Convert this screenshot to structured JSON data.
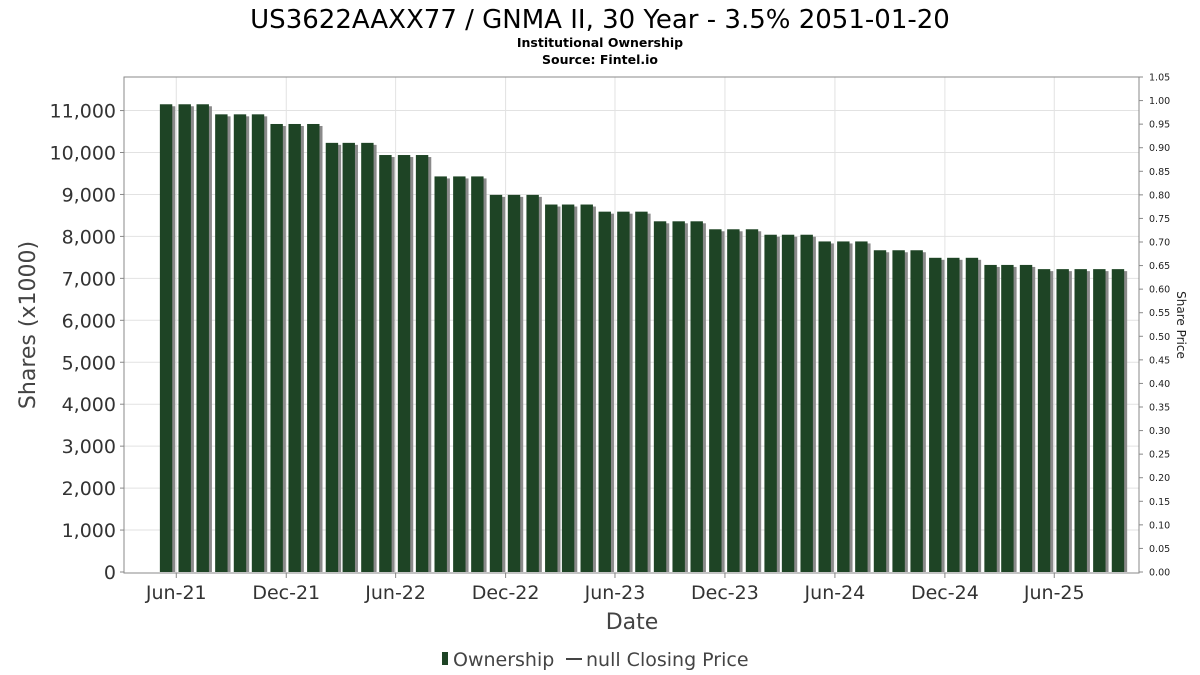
{
  "colors": {
    "bar": "#1e4425",
    "bar_shadow": "#8a8a8a",
    "grid": "#e2e2e2",
    "plot_border": "#888888"
  },
  "chart_data": {
    "type": "bar",
    "title": "US3622AAXX77 / GNMA II, 30 Year - 3.5% 2051-01-20",
    "subtitle_lines": [
      "Institutional Ownership",
      "Source: Fintel.io"
    ],
    "xlabel": "Date",
    "ylabel": "Shares (x1000)",
    "y2label": "Share Price",
    "ylim": [
      0,
      11800
    ],
    "y2lim": [
      0.0,
      1.05
    ],
    "yticks": [
      {
        "value": 0,
        "label": "0"
      },
      {
        "value": 1000,
        "label": "1,000"
      },
      {
        "value": 2000,
        "label": "2,000"
      },
      {
        "value": 3000,
        "label": "3,000"
      },
      {
        "value": 4000,
        "label": "4,000"
      },
      {
        "value": 5000,
        "label": "5,000"
      },
      {
        "value": 6000,
        "label": "6,000"
      },
      {
        "value": 7000,
        "label": "7,000"
      },
      {
        "value": 8000,
        "label": "8,000"
      },
      {
        "value": 9000,
        "label": "9,000"
      },
      {
        "value": 10000,
        "label": "10,000"
      },
      {
        "value": 11000,
        "label": "11,000"
      }
    ],
    "y2ticks": [
      "0.00",
      "0.05",
      "0.10",
      "0.15",
      "0.20",
      "0.25",
      "0.30",
      "0.35",
      "0.40",
      "0.45",
      "0.50",
      "0.55",
      "0.60",
      "0.65",
      "0.70",
      "0.75",
      "0.80",
      "0.85",
      "0.90",
      "0.95",
      "1.00",
      "1.05"
    ],
    "xlim": [
      "2021-03-06",
      "2025-10-20"
    ],
    "xticks": [
      {
        "date": "2021-06-01",
        "label": "Jun-21"
      },
      {
        "date": "2021-12-01",
        "label": "Dec-21"
      },
      {
        "date": "2022-06-01",
        "label": "Jun-22"
      },
      {
        "date": "2022-12-01",
        "label": "Dec-22"
      },
      {
        "date": "2023-06-01",
        "label": "Jun-23"
      },
      {
        "date": "2023-12-01",
        "label": "Dec-23"
      },
      {
        "date": "2024-06-01",
        "label": "Jun-24"
      },
      {
        "date": "2024-12-01",
        "label": "Dec-24"
      },
      {
        "date": "2025-06-01",
        "label": "Jun-25"
      }
    ],
    "series": [
      {
        "name": "Ownership",
        "x": [
          "2021-05",
          "2021-06",
          "2021-07",
          "2021-08",
          "2021-09",
          "2021-10",
          "2021-11",
          "2021-12",
          "2022-01",
          "2022-02",
          "2022-03",
          "2022-04",
          "2022-05",
          "2022-06",
          "2022-07",
          "2022-08",
          "2022-09",
          "2022-10",
          "2022-11",
          "2022-12",
          "2023-01",
          "2023-02",
          "2023-03",
          "2023-04",
          "2023-05",
          "2023-06",
          "2023-07",
          "2023-08",
          "2023-09",
          "2023-10",
          "2023-11",
          "2023-12",
          "2024-01",
          "2024-02",
          "2024-03",
          "2024-04",
          "2024-05",
          "2024-06",
          "2024-07",
          "2024-08",
          "2024-09",
          "2024-10",
          "2024-11",
          "2024-12",
          "2025-01",
          "2025-02",
          "2025-03",
          "2025-04",
          "2025-05",
          "2025-06",
          "2025-07",
          "2025-08",
          "2025-09"
        ],
        "values": [
          11150,
          11150,
          11150,
          10910,
          10910,
          10910,
          10680,
          10680,
          10680,
          10230,
          10230,
          10230,
          9940,
          9940,
          9940,
          9430,
          9430,
          9430,
          8990,
          8990,
          8990,
          8760,
          8760,
          8760,
          8590,
          8590,
          8590,
          8360,
          8360,
          8360,
          8170,
          8170,
          8170,
          8040,
          8040,
          8040,
          7880,
          7880,
          7880,
          7670,
          7670,
          7670,
          7490,
          7490,
          7490,
          7320,
          7320,
          7320,
          7220,
          7220,
          7220,
          7220,
          7220
        ]
      }
    ],
    "legend": {
      "placement": "bottom-center",
      "items": [
        {
          "icon": "bar-swatch-icon",
          "label": "Ownership"
        },
        {
          "icon": "line-swatch-icon",
          "label": "null Closing Price"
        }
      ]
    }
  }
}
